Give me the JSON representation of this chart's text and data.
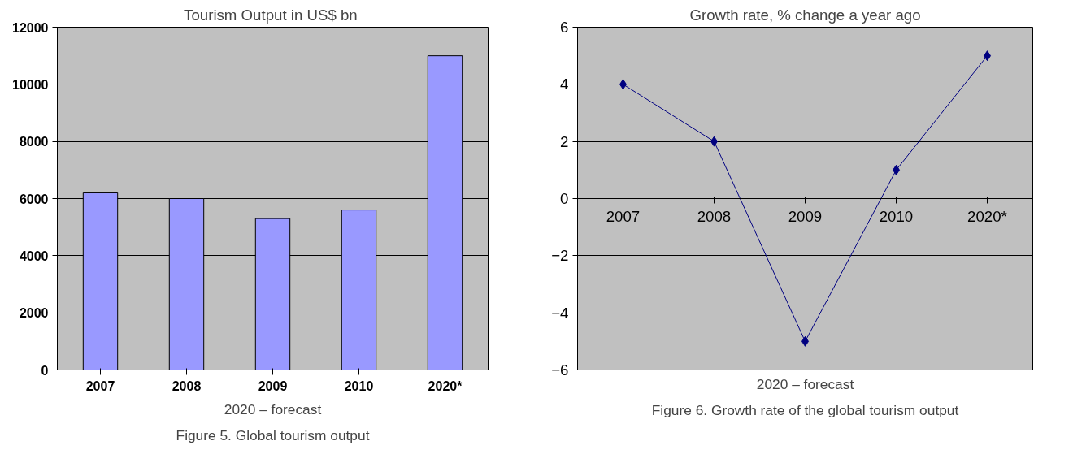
{
  "chart_data": [
    {
      "type": "bar",
      "title": "Tourism Output  in US$ bn",
      "categories": [
        "2007",
        "2008",
        "2009",
        "2010",
        "2020*"
      ],
      "values": [
        6200,
        6000,
        5300,
        5600,
        11000
      ],
      "color": "#9999ff",
      "ylim": [
        0,
        12000
      ],
      "yticks": [
        0,
        2000,
        4000,
        6000,
        8000,
        10000,
        12000
      ],
      "grid": "y",
      "annotations": [
        "2020 – forecast",
        "Figure 5. Global tourism output"
      ]
    },
    {
      "type": "line",
      "title": "Growth rate, % change a year ago",
      "categories": [
        "2007",
        "2008",
        "2009",
        "2010",
        "2020*"
      ],
      "values": [
        4,
        2,
        -5,
        1,
        5
      ],
      "color": "#000080",
      "marker": "diamond",
      "line_style": "solid",
      "ylim": [
        -6,
        6
      ],
      "yticks": [
        -6,
        -4,
        -2,
        0,
        2,
        4,
        6
      ],
      "grid": "y",
      "annotations": [
        "2020 – forecast",
        "Figure 6. Growth rate of the global tourism output"
      ]
    }
  ]
}
